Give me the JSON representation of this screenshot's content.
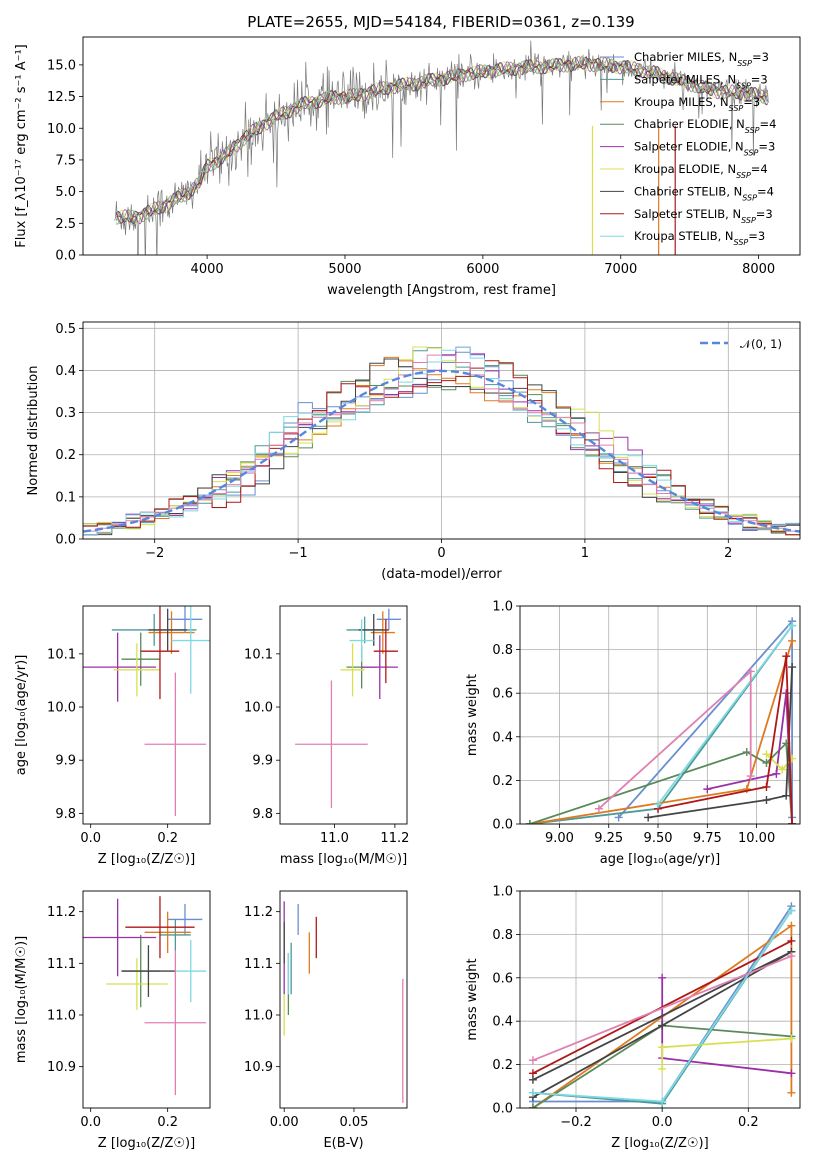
{
  "colors": {
    "Chabrier MILES": "#6a8fd0",
    "Salpeter MILES": "#4a9a9a",
    "Kroupa MILES": "#e07a20",
    "Chabrier ELODIE": "#5a8a5a",
    "Salpeter ELODIE": "#9a30a8",
    "Kroupa ELODIE": "#d8e050",
    "Chabrier STELIB": "#444444",
    "Salpeter STELIB": "#b01818",
    "Kroupa STELIB": "#80d8e0",
    "pink": "#e080b0",
    "gaussian": "#5588dd",
    "grid": "#b0b0b0"
  },
  "chart_data": [
    {
      "id": "spectrum",
      "type": "line",
      "title": "PLATE=2655, MJD=54184, FIBERID=0361, z=0.139",
      "xlabel": "wavelength [Angstrom, rest frame]",
      "ylabel": "Flux [f_λ10⁻¹⁷ erg cm⁻² s⁻¹ A⁻¹]",
      "xlim": [
        3100,
        8300
      ],
      "ylim": [
        0,
        17.2
      ],
      "xticks": [
        "4000",
        "5000",
        "6000",
        "7000",
        "8000"
      ],
      "yticks": [
        "0.0",
        "2.5",
        "5.0",
        "7.5",
        "10.0",
        "12.5",
        "15.0"
      ],
      "xtick_values": [
        4000,
        5000,
        6000,
        7000,
        8000
      ],
      "ytick_values": [
        0,
        2.5,
        5,
        7.5,
        10,
        12.5,
        15
      ],
      "continuum": [
        [
          3330,
          3.0
        ],
        [
          3500,
          3.0
        ],
        [
          3700,
          4.0
        ],
        [
          3850,
          4.8
        ],
        [
          3950,
          5.8
        ],
        [
          4000,
          7.0
        ],
        [
          4100,
          7.6
        ],
        [
          4200,
          8.5
        ],
        [
          4300,
          9.5
        ],
        [
          4500,
          10.9
        ],
        [
          4700,
          11.9
        ],
        [
          4900,
          12.4
        ],
        [
          5100,
          12.6
        ],
        [
          5300,
          13.2
        ],
        [
          5500,
          13.5
        ],
        [
          5700,
          13.9
        ],
        [
          5900,
          14.3
        ],
        [
          6100,
          14.6
        ],
        [
          6300,
          14.8
        ],
        [
          6500,
          14.9
        ],
        [
          6700,
          15.1
        ],
        [
          6900,
          15.0
        ],
        [
          7100,
          14.7
        ],
        [
          7300,
          14.2
        ],
        [
          7500,
          13.5
        ],
        [
          7700,
          12.9
        ],
        [
          7900,
          12.8
        ],
        [
          8070,
          12.4
        ]
      ],
      "legend": [
        {
          "name": "Chabrier MILES, N",
          "sub": "SSP",
          "suffix": "=3"
        },
        {
          "name": "Salpeter MILES, N",
          "sub": "SSP",
          "suffix": "=3"
        },
        {
          "name": "Kroupa MILES, N",
          "sub": "SSP",
          "suffix": "=3"
        },
        {
          "name": "Chabrier ELODIE, N",
          "sub": "SSP",
          "suffix": "=4"
        },
        {
          "name": "Salpeter ELODIE, N",
          "sub": "SSP",
          "suffix": "=3"
        },
        {
          "name": "Kroupa ELODIE, N",
          "sub": "SSP",
          "suffix": "=4"
        },
        {
          "name": "Chabrier STELIB, N",
          "sub": "SSP",
          "suffix": "=4"
        },
        {
          "name": "Salpeter STELIB, N",
          "sub": "SSP",
          "suffix": "=3"
        },
        {
          "name": "Kroupa STELIB, N",
          "sub": "SSP",
          "suffix": "=3"
        }
      ],
      "legend_placement": "upper right"
    },
    {
      "id": "residuals",
      "type": "histogram",
      "xlabel": "(data-model)/error",
      "ylabel": "Normed distribution",
      "xlim": [
        -2.5,
        2.5
      ],
      "ylim": [
        0,
        0.515
      ],
      "xticks": [
        "−2",
        "−1",
        "0",
        "1",
        "2"
      ],
      "xtick_values": [
        -2,
        -1,
        0,
        1,
        2
      ],
      "yticks": [
        "0.0",
        "0.1",
        "0.2",
        "0.3",
        "0.4",
        "0.5"
      ],
      "ytick_values": [
        0,
        0.1,
        0.2,
        0.3,
        0.4,
        0.5
      ],
      "bin_width": 0.1,
      "legend": "𝒩(0, 1)",
      "legend_placement": "upper right",
      "grid": true
    },
    {
      "id": "age_vs_Z",
      "type": "errorbar",
      "xlabel": "Z [log₁₀(Z/Z☉)]",
      "ylabel": "age  [log₁₀(age/yr)]",
      "xlim": [
        -0.02,
        0.31
      ],
      "ylim": [
        9.78,
        10.19
      ],
      "xticks": [
        "0.0",
        "0.2"
      ],
      "xtick_values": [
        0.0,
        0.2
      ],
      "yticks": [
        "9.8",
        "9.9",
        "10.0",
        "10.1"
      ],
      "ytick_values": [
        9.8,
        9.9,
        10.0,
        10.1
      ],
      "points": [
        {
          "s": "Chabrier MILES",
          "x": 0.245,
          "xerr": 0.045,
          "y": 10.165,
          "yerr": 0.025
        },
        {
          "s": "Salpeter MILES",
          "x": 0.165,
          "xerr": 0.11,
          "y": 10.145,
          "yerr": 0.03
        },
        {
          "s": "Kroupa MILES",
          "x": 0.21,
          "xerr": 0.06,
          "y": 10.14,
          "yerr": 0.04
        },
        {
          "s": "Chabrier ELODIE",
          "x": 0.13,
          "xerr": 0.05,
          "y": 10.09,
          "yerr": 0.05
        },
        {
          "s": "Salpeter ELODIE",
          "x": 0.07,
          "xerr": 0.1,
          "y": 10.075,
          "yerr": 0.065
        },
        {
          "s": "Kroupa ELODIE",
          "x": 0.12,
          "xerr": 0.06,
          "y": 10.07,
          "yerr": 0.05
        },
        {
          "s": "Chabrier STELIB",
          "x": 0.2,
          "xerr": 0.05,
          "y": 10.145,
          "yerr": 0.04
        },
        {
          "s": "Salpeter STELIB",
          "x": 0.18,
          "xerr": 0.05,
          "y": 10.105,
          "yerr": 0.09
        },
        {
          "s": "Kroupa STELIB",
          "x": 0.26,
          "xerr": 0.05,
          "y": 10.125,
          "yerr": 0.1
        },
        {
          "s": "pink",
          "x": 0.22,
          "xerr": 0.08,
          "y": 9.93,
          "yerr": 0.135
        }
      ]
    },
    {
      "id": "age_vs_mass",
      "type": "errorbar",
      "xlabel": "mass [log₁₀(M/M☉)]",
      "ylabel": "",
      "xlim": [
        10.82,
        11.24
      ],
      "ylim": [
        9.78,
        10.19
      ],
      "xticks": [
        "11.0",
        "11.2"
      ],
      "xtick_values": [
        11.0,
        11.2
      ],
      "yticks": [
        "9.8",
        "9.9",
        "10.0",
        "10.1"
      ],
      "ytick_values": [
        9.8,
        9.9,
        10.0,
        10.1
      ],
      "points": [
        {
          "s": "Chabrier MILES",
          "x": 11.18,
          "xerr": 0.04,
          "y": 10.165,
          "yerr": 0.02
        },
        {
          "s": "Salpeter MILES",
          "x": 11.1,
          "xerr": 0.06,
          "y": 10.145,
          "yerr": 0.025
        },
        {
          "s": "Kroupa MILES",
          "x": 11.16,
          "xerr": 0.04,
          "y": 10.14,
          "yerr": 0.04
        },
        {
          "s": "Chabrier ELODIE",
          "x": 11.09,
          "xerr": 0.05,
          "y": 10.075,
          "yerr": 0.04
        },
        {
          "s": "Salpeter ELODIE",
          "x": 11.15,
          "xerr": 0.06,
          "y": 10.075,
          "yerr": 0.06
        },
        {
          "s": "Kroupa ELODIE",
          "x": 11.06,
          "xerr": 0.04,
          "y": 10.07,
          "yerr": 0.05
        },
        {
          "s": "Chabrier STELIB",
          "x": 11.13,
          "xerr": 0.05,
          "y": 10.145,
          "yerr": 0.03
        },
        {
          "s": "Salpeter STELIB",
          "x": 11.17,
          "xerr": 0.04,
          "y": 10.105,
          "yerr": 0.06
        },
        {
          "s": "Kroupa STELIB",
          "x": 11.09,
          "xerr": 0.04,
          "y": 10.125,
          "yerr": 0.04
        },
        {
          "s": "pink",
          "x": 10.99,
          "xerr": 0.12,
          "y": 9.93,
          "yerr": 0.12
        }
      ]
    },
    {
      "id": "weight_vs_age",
      "type": "line",
      "xlabel": "age  [log₁₀(age/yr)]",
      "ylabel": "mass weight",
      "xlim": [
        8.8,
        10.22
      ],
      "ylim": [
        0,
        1
      ],
      "xticks": [
        "9.00",
        "9.25",
        "9.50",
        "9.75",
        "10.00"
      ],
      "xtick_values": [
        9.0,
        9.25,
        9.5,
        9.75,
        10.0
      ],
      "yticks": [
        "0.0",
        "0.2",
        "0.4",
        "0.6",
        "0.8",
        "1.0"
      ],
      "ytick_values": [
        0,
        0.2,
        0.4,
        0.6,
        0.8,
        1.0
      ],
      "grid": true,
      "series": [
        {
          "s": "Chabrier MILES",
          "x": [
            9.3,
            10.18,
            10.18
          ],
          "y": [
            0.03,
            0.93,
            0.03
          ]
        },
        {
          "s": "Salpeter MILES",
          "x": [
            8.85,
            9.5,
            10.18
          ],
          "y": [
            0.0,
            0.07,
            0.91
          ]
        },
        {
          "s": "Kroupa MILES",
          "x": [
            8.85,
            9.95,
            10.18
          ],
          "y": [
            0.0,
            0.16,
            0.84
          ]
        },
        {
          "s": "Chabrier ELODIE",
          "x": [
            8.85,
            9.95,
            10.05,
            10.15,
            10.18
          ],
          "y": [
            0.0,
            0.33,
            0.28,
            0.37,
            0.0
          ]
        },
        {
          "s": "Salpeter ELODIE",
          "x": [
            9.75,
            10.1,
            10.15,
            10.18
          ],
          "y": [
            0.16,
            0.23,
            0.6,
            0.0
          ]
        },
        {
          "s": "Kroupa ELODIE",
          "x": [
            10.05,
            10.13,
            10.18
          ],
          "y": [
            0.32,
            0.25,
            0.3
          ]
        },
        {
          "s": "Chabrier STELIB",
          "x": [
            9.45,
            10.05,
            10.15,
            10.18
          ],
          "y": [
            0.03,
            0.11,
            0.13,
            0.72
          ]
        },
        {
          "s": "Salpeter STELIB",
          "x": [
            9.5,
            10.05,
            10.15,
            10.18
          ],
          "y": [
            0.07,
            0.17,
            0.77,
            0.0
          ]
        },
        {
          "s": "Kroupa STELIB",
          "x": [
            9.5,
            10.18
          ],
          "y": [
            0.09,
            0.91
          ]
        },
        {
          "s": "pink",
          "x": [
            9.2,
            9.97,
            9.97
          ],
          "y": [
            0.07,
            0.7,
            0.22
          ]
        }
      ]
    },
    {
      "id": "mass_vs_Z",
      "type": "errorbar",
      "xlabel": "Z [log₁₀(Z/Z☉)]",
      "ylabel": "mass [log₁₀(M/M☉)]",
      "xlim": [
        -0.02,
        0.31
      ],
      "ylim": [
        10.82,
        11.24
      ],
      "xticks": [
        "0.0",
        "0.2"
      ],
      "xtick_values": [
        0.0,
        0.2
      ],
      "yticks": [
        "10.9",
        "11.0",
        "11.1",
        "11.2"
      ],
      "ytick_values": [
        10.9,
        11.0,
        11.1,
        11.2
      ],
      "points": [
        {
          "s": "Chabrier MILES",
          "x": 0.245,
          "xerr": 0.045,
          "y": 11.185,
          "yerr": 0.03
        },
        {
          "s": "Salpeter MILES",
          "x": 0.22,
          "xerr": 0.04,
          "y": 11.155,
          "yerr": 0.03
        },
        {
          "s": "Kroupa MILES",
          "x": 0.2,
          "xerr": 0.06,
          "y": 11.16,
          "yerr": 0.04
        },
        {
          "s": "Chabrier ELODIE",
          "x": 0.13,
          "xerr": 0.05,
          "y": 11.085,
          "yerr": 0.07
        },
        {
          "s": "Salpeter ELODIE",
          "x": 0.07,
          "xerr": 0.1,
          "y": 11.15,
          "yerr": 0.075
        },
        {
          "s": "Kroupa ELODIE",
          "x": 0.12,
          "xerr": 0.08,
          "y": 11.06,
          "yerr": 0.05
        },
        {
          "s": "Chabrier STELIB",
          "x": 0.15,
          "xerr": 0.07,
          "y": 11.085,
          "yerr": 0.05
        },
        {
          "s": "Salpeter STELIB",
          "x": 0.18,
          "xerr": 0.09,
          "y": 11.17,
          "yerr": 0.06
        },
        {
          "s": "Kroupa STELIB",
          "x": 0.26,
          "xerr": 0.04,
          "y": 11.085,
          "yerr": 0.06
        },
        {
          "s": "pink",
          "x": 0.22,
          "xerr": 0.08,
          "y": 10.985,
          "yerr": 0.14
        }
      ]
    },
    {
      "id": "mass_vs_EBV",
      "type": "errorbar",
      "xlabel": "E(B-V)",
      "ylabel": "",
      "xlim": [
        -0.003,
        0.088
      ],
      "ylim": [
        10.82,
        11.24
      ],
      "xticks": [
        "0.00",
        "0.05"
      ],
      "xtick_values": [
        0.0,
        0.05
      ],
      "yticks": [
        "10.9",
        "11.0",
        "11.1",
        "11.2"
      ],
      "ytick_values": [
        10.9,
        11.0,
        11.1,
        11.2
      ],
      "points": [
        {
          "s": "Chabrier MILES",
          "x": 0.01,
          "xerr": 0,
          "y": 11.185,
          "yerr": 0.03
        },
        {
          "s": "Salpeter MILES",
          "x": 0.005,
          "xerr": 0,
          "y": 11.09,
          "yerr": 0.05
        },
        {
          "s": "Kroupa MILES",
          "x": 0.018,
          "xerr": 0,
          "y": 11.12,
          "yerr": 0.04
        },
        {
          "s": "Chabrier ELODIE",
          "x": 0.003,
          "xerr": 0,
          "y": 11.06,
          "yerr": 0.06
        },
        {
          "s": "Salpeter ELODIE",
          "x": 0.0,
          "xerr": 0,
          "y": 11.13,
          "yerr": 0.09
        },
        {
          "s": "Kroupa ELODIE",
          "x": 0.0,
          "xerr": 0,
          "y": 11.0,
          "yerr": 0.04
        },
        {
          "s": "Chabrier STELIB",
          "x": 0.0,
          "xerr": 0,
          "y": 11.14,
          "yerr": 0.04
        },
        {
          "s": "Salpeter STELIB",
          "x": 0.023,
          "xerr": 0,
          "y": 11.15,
          "yerr": 0.04
        },
        {
          "s": "Kroupa STELIB",
          "x": 0.003,
          "xerr": 0,
          "y": 11.08,
          "yerr": 0.04
        },
        {
          "s": "pink",
          "x": 0.085,
          "xerr": 0,
          "y": 10.95,
          "yerr": 0.12
        }
      ]
    },
    {
      "id": "weight_vs_Z",
      "type": "line",
      "xlabel": "Z [log₁₀(Z/Z☉)]",
      "ylabel": "mass weight",
      "xlim": [
        -0.33,
        0.32
      ],
      "ylim": [
        0,
        1
      ],
      "xticks": [
        "−0.2",
        "0.0",
        "0.2"
      ],
      "xtick_values": [
        -0.2,
        0.0,
        0.2
      ],
      "yticks": [
        "0.0",
        "0.2",
        "0.4",
        "0.6",
        "0.8",
        "1.0"
      ],
      "ytick_values": [
        0,
        0.2,
        0.4,
        0.6,
        0.8,
        1.0
      ],
      "grid": true,
      "series": [
        {
          "s": "Chabrier MILES",
          "x": [
            -0.3,
            0.0,
            0.3
          ],
          "y": [
            0.03,
            0.03,
            0.93
          ]
        },
        {
          "s": "Salpeter MILES",
          "x": [
            -0.3,
            0.0,
            0.3
          ],
          "y": [
            0.07,
            0.02,
            0.91
          ]
        },
        {
          "s": "Kroupa MILES",
          "x": [
            -0.3,
            0.3,
            0.3
          ],
          "y": [
            0.0,
            0.84,
            0.07
          ]
        },
        {
          "s": "Chabrier ELODIE",
          "x": [
            -0.3,
            0.0,
            0.3
          ],
          "y": [
            0.0,
            0.38,
            0.33
          ]
        },
        {
          "s": "Salpeter ELODIE",
          "x": [
            0.0,
            0.0,
            0.3
          ],
          "y": [
            0.6,
            0.23,
            0.16
          ]
        },
        {
          "s": "Kroupa ELODIE",
          "x": [
            0.0,
            0.0,
            0.3
          ],
          "y": [
            0.18,
            0.28,
            0.32
          ]
        },
        {
          "s": "Chabrier STELIB",
          "x": [
            -0.3,
            0.3,
            0.0,
            -0.3
          ],
          "y": [
            0.13,
            0.72,
            0.38,
            0.05
          ]
        },
        {
          "s": "Salpeter STELIB",
          "x": [
            -0.3,
            0.3
          ],
          "y": [
            0.16,
            0.77
          ]
        },
        {
          "s": "Kroupa STELIB",
          "x": [
            -0.3,
            0.0,
            0.3
          ],
          "y": [
            0.07,
            0.03,
            0.91
          ]
        },
        {
          "s": "pink",
          "x": [
            -0.3,
            0.3
          ],
          "y": [
            0.22,
            0.7
          ]
        }
      ]
    }
  ]
}
